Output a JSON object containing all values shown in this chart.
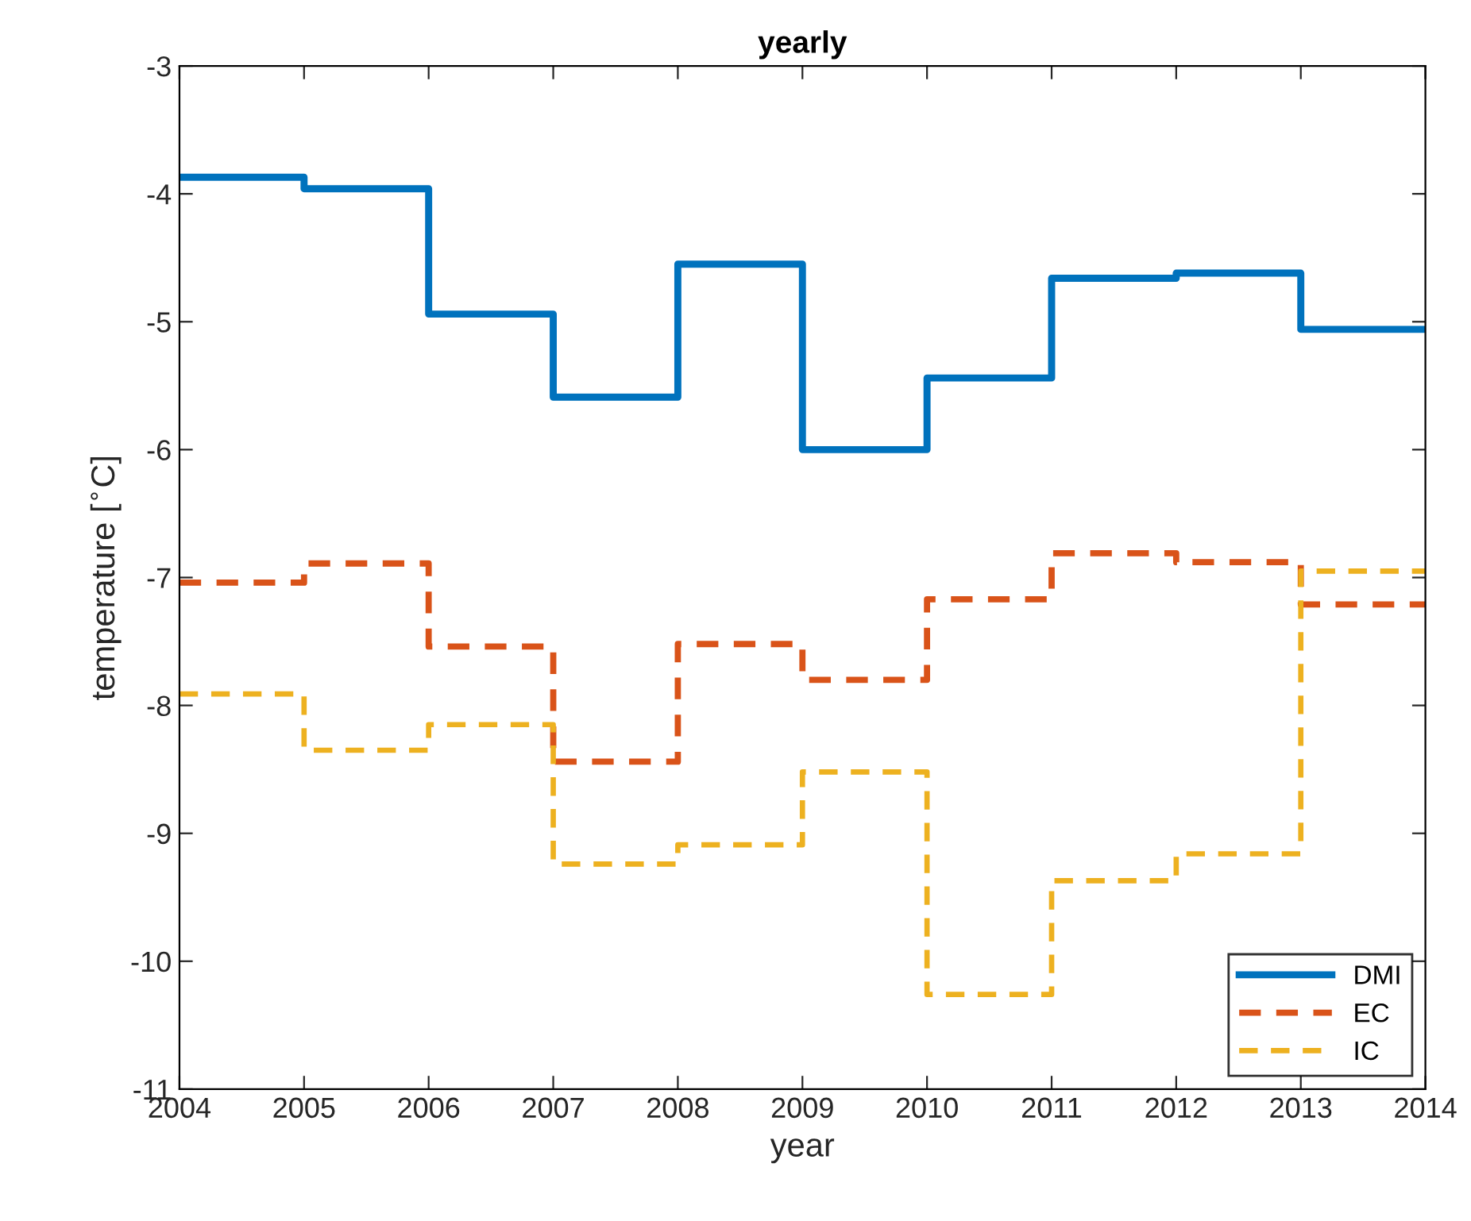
{
  "chart_data": {
    "type": "step",
    "title": "yearly",
    "xlabel": "year",
    "ylabel": "temperature [$^{∘}$C]",
    "x": [
      2004,
      2005,
      2006,
      2007,
      2008,
      2009,
      2010,
      2011,
      2012,
      2013,
      2014
    ],
    "series": [
      {
        "name": "DMI",
        "color": "#0072bd",
        "line_style": "solid",
        "values": [
          -3.87,
          -3.96,
          -4.94,
          -5.59,
          -4.55,
          -6.0,
          -5.44,
          -4.66,
          -4.62,
          -5.06,
          -5.06
        ]
      },
      {
        "name": "EC",
        "color": "#d95319",
        "line_style": "dashed",
        "values": [
          -7.04,
          -6.89,
          -7.54,
          -8.44,
          -7.52,
          -7.8,
          -7.17,
          -6.81,
          -6.88,
          -7.21,
          -7.21
        ]
      },
      {
        "name": "IC",
        "color": "#edb120",
        "line_style": "dashed",
        "values": [
          -7.91,
          -8.35,
          -8.15,
          -9.24,
          -9.09,
          -8.52,
          -10.26,
          -9.37,
          -9.16,
          -6.95,
          -6.95
        ]
      }
    ],
    "xlim": [
      2004,
      2014
    ],
    "xticks": [
      2004,
      2005,
      2006,
      2007,
      2008,
      2009,
      2010,
      2011,
      2012,
      2013,
      2014
    ],
    "ylim": [
      -11,
      -3
    ],
    "yticks": [
      -11,
      -10,
      -9,
      -8,
      -7,
      -6,
      -5,
      -4,
      -3
    ],
    "grid": false,
    "legend": "bottom right",
    "marker": "none"
  }
}
